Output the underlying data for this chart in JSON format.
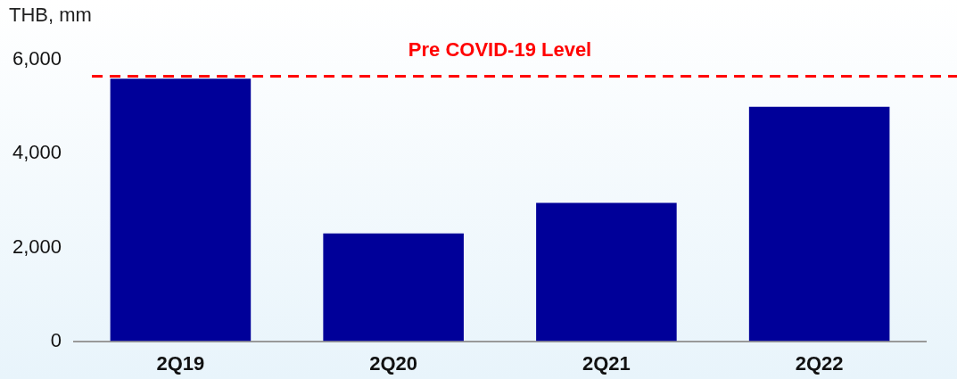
{
  "chart_data": {
    "type": "bar",
    "ylabel": "THB, mm",
    "categories": [
      "2Q19",
      "2Q20",
      "2Q21",
      "2Q22"
    ],
    "values": [
      5600,
      2300,
      2950,
      5000
    ],
    "color": "#000099",
    "ylim": [
      0,
      6000
    ],
    "yticks": [
      {
        "value": 0,
        "label": "0"
      },
      {
        "value": 2000,
        "label": "2,000"
      },
      {
        "value": 4000,
        "label": "4,000"
      },
      {
        "value": 6000,
        "label": "6,000"
      }
    ],
    "ref_lines": [
      {
        "axis": "y",
        "value": 5650,
        "label": "Pre COVID-19 Level",
        "color": "#ff0000",
        "line_style": "dashed"
      }
    ],
    "grid": false,
    "legend": false
  }
}
